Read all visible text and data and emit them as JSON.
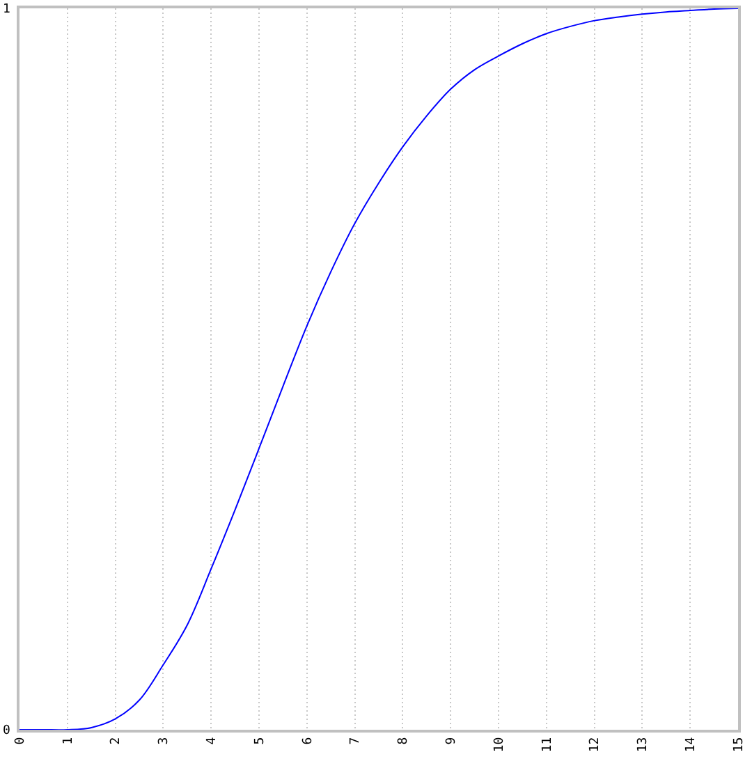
{
  "chart_data": {
    "type": "line",
    "x": [
      0,
      0.5,
      1,
      1.5,
      2,
      2.5,
      3,
      3.5,
      4,
      4.5,
      5,
      5.5,
      6,
      6.5,
      7,
      7.5,
      8,
      8.5,
      9,
      9.5,
      10,
      10.5,
      11,
      11.5,
      12,
      12.5,
      13,
      13.5,
      14,
      14.5,
      15
    ],
    "values": [
      0,
      0,
      0,
      0.003,
      0.015,
      0.041,
      0.09,
      0.145,
      0.223,
      0.305,
      0.39,
      0.476,
      0.56,
      0.635,
      0.702,
      0.758,
      0.808,
      0.851,
      0.888,
      0.915,
      0.934,
      0.951,
      0.965,
      0.975,
      0.983,
      0.988,
      0.992,
      0.995,
      0.997,
      0.999,
      1.0
    ],
    "color": "#0000ff",
    "xlim": [
      0,
      15
    ],
    "ylim": [
      0,
      1
    ],
    "xticks": [
      0,
      1,
      2,
      3,
      4,
      5,
      6,
      7,
      8,
      9,
      10,
      11,
      12,
      13,
      14,
      15
    ],
    "yticks": [
      0,
      1
    ],
    "grid": "x"
  }
}
